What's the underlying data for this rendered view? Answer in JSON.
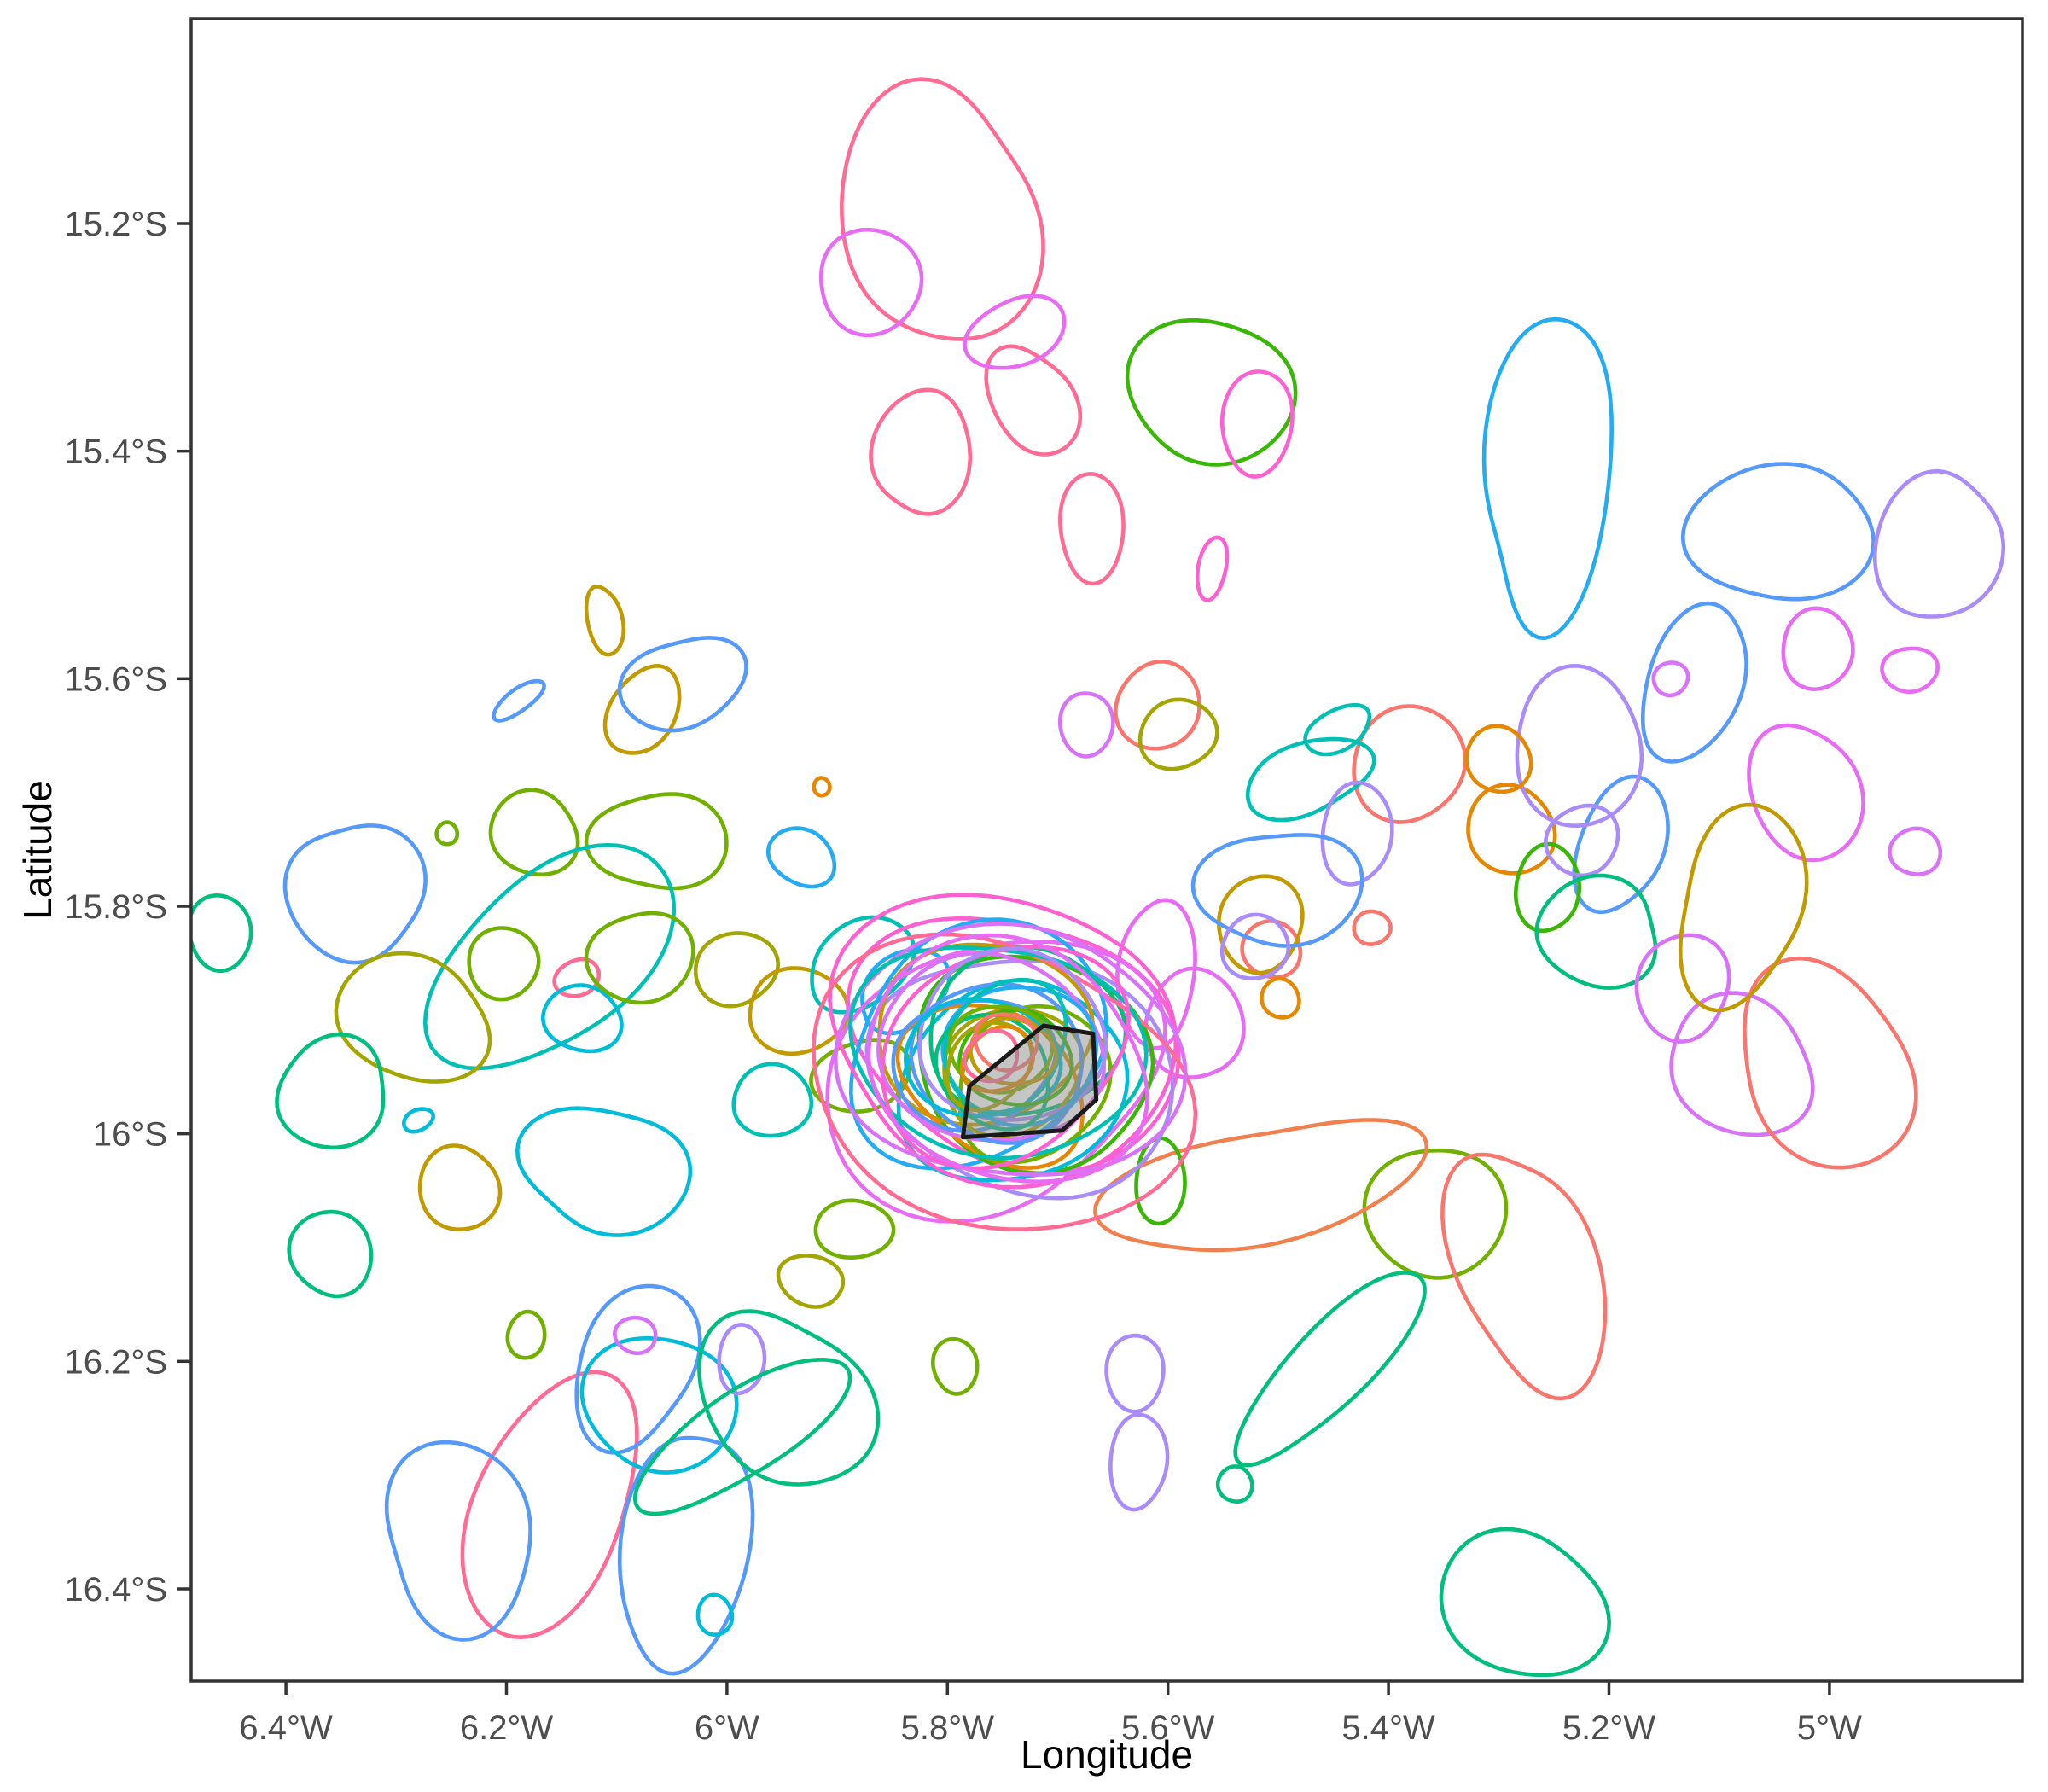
{
  "chart_data": {
    "type": "line",
    "subtype": "2d-home-range-contour-outlines-on-map",
    "title": "",
    "xlabel": "Longitude",
    "ylabel": "Latitude",
    "grid": false,
    "legend_position": "none",
    "xlim": [
      -6.486,
      -4.825
    ],
    "ylim": [
      -16.481,
      -15.02
    ],
    "x_ticks": [
      {
        "value": -6.4,
        "label": "6.4°W"
      },
      {
        "value": -6.2,
        "label": "6.2°W"
      },
      {
        "value": -6.0,
        "label": "6°W"
      },
      {
        "value": -5.8,
        "label": "5.8°W"
      },
      {
        "value": -5.6,
        "label": "5.6°W"
      },
      {
        "value": -5.4,
        "label": "5.4°W"
      },
      {
        "value": -5.2,
        "label": "5.2°W"
      },
      {
        "value": -5.0,
        "label": "5°W"
      }
    ],
    "y_ticks": [
      {
        "value": -15.2,
        "label": "15.2°S"
      },
      {
        "value": -15.4,
        "label": "15.4°S"
      },
      {
        "value": -15.6,
        "label": "15.6°S"
      },
      {
        "value": -15.8,
        "label": "15.8°S"
      },
      {
        "value": -16.0,
        "label": "16°S"
      },
      {
        "value": -16.2,
        "label": "16.2°S"
      },
      {
        "value": -16.4,
        "label": "16.4°S"
      }
    ],
    "colors": {
      "axis_text": "#4d4d4d",
      "axis_title": "#000000",
      "panel_border": "#333333",
      "polygon_fill": "#8c8c8c",
      "polygon_stroke": "#1a1a1a"
    },
    "palette": {
      "salmon": "#F8766D",
      "coral": "#F0814E",
      "orange": "#E58700",
      "gold": "#C19A00",
      "olive": "#A3A500",
      "applegreen": "#72B000",
      "green": "#39B606",
      "jade": "#00BE7D",
      "teal": "#00C0B4",
      "cyan": "#00BCD8",
      "sky": "#24ACF2",
      "blue": "#5599FA",
      "purple": "#A98CF9",
      "violet": "#D873F8",
      "orchid": "#E76BF3",
      "hotpink": "#FD61D1",
      "rose": "#FF6B94"
    },
    "study_polygon": {
      "opacity": 0.5,
      "vertices": [
        [
          -5.713,
          -15.905
        ],
        [
          -5.668,
          -15.912
        ],
        [
          -5.665,
          -15.97
        ],
        [
          -5.696,
          -15.997
        ],
        [
          -5.786,
          -16.003
        ],
        [
          -5.78,
          -15.958
        ]
      ]
    },
    "contour_format": [
      "lon_center",
      "lat_center",
      "rx_deg",
      "ry_deg",
      "rotation_deg",
      "color_key",
      "wobble"
    ],
    "contours": [
      [
        -5.808,
        -15.193,
        0.089,
        0.113,
        0,
        "rose",
        0.15
      ],
      [
        -5.823,
        -15.401,
        0.043,
        0.056,
        15,
        "rose",
        0.12
      ],
      [
        -5.723,
        -15.356,
        0.037,
        0.05,
        -25,
        "rose",
        0.12
      ],
      [
        -5.87,
        -15.251,
        0.048,
        0.044,
        0,
        "orchid",
        0.08
      ],
      [
        -5.738,
        -15.296,
        0.045,
        0.03,
        -20,
        "orchid",
        0.08
      ],
      [
        -5.561,
        -15.347,
        0.074,
        0.064,
        0,
        "green",
        0.1
      ],
      [
        -5.519,
        -15.375,
        0.031,
        0.047,
        10,
        "hotpink",
        0.08
      ],
      [
        -5.669,
        -15.467,
        0.03,
        0.046,
        0,
        "rose",
        0.08
      ],
      [
        -5.56,
        -15.503,
        0.013,
        0.027,
        10,
        "hotpink",
        0.06
      ],
      [
        -5.609,
        -15.624,
        0.038,
        0.038,
        0,
        "salmon",
        0.06
      ],
      [
        -5.674,
        -15.64,
        0.023,
        0.029,
        0,
        "violet",
        0.07
      ],
      [
        -5.254,
        -15.416,
        0.058,
        0.135,
        8,
        "sky",
        0.18
      ],
      [
        -5.045,
        -15.472,
        0.084,
        0.06,
        -10,
        "blue",
        0.12
      ],
      [
        -5.123,
        -15.604,
        0.043,
        0.071,
        25,
        "blue",
        0.1
      ],
      [
        -5.189,
        -15.746,
        0.039,
        0.06,
        15,
        "blue",
        0.1
      ],
      [
        -5.011,
        -15.574,
        0.033,
        0.034,
        0,
        "orchid",
        0.07
      ],
      [
        -4.927,
        -15.592,
        0.024,
        0.02,
        0,
        "orchid",
        0.08
      ],
      [
        -4.922,
        -15.752,
        0.022,
        0.021,
        0,
        "violet",
        0.07
      ],
      [
        -5.144,
        -15.6,
        0.016,
        0.014,
        0,
        "violet",
        0.06
      ],
      [
        -5.022,
        -15.7,
        0.048,
        0.062,
        -15,
        "orchid",
        0.09
      ],
      [
        -5.289,
        -15.733,
        0.04,
        0.038,
        0,
        "orange",
        0.07
      ],
      [
        -5.256,
        -15.784,
        0.028,
        0.039,
        0,
        "green",
        0.07
      ],
      [
        -5.228,
        -15.661,
        0.06,
        0.066,
        0,
        "purple",
        0.1
      ],
      [
        -5.224,
        -15.742,
        0.033,
        0.03,
        0,
        "purple",
        0.08
      ],
      [
        -5.21,
        -15.823,
        0.058,
        0.045,
        0,
        "jade",
        0.15
      ],
      [
        -5.133,
        -15.871,
        0.043,
        0.045,
        0,
        "violet",
        0.09
      ],
      [
        -5.08,
        -15.941,
        0.07,
        0.056,
        20,
        "violet",
        0.13
      ],
      [
        -5.003,
        -15.941,
        0.077,
        0.089,
        -35,
        "salmon",
        0.14
      ],
      [
        -5.506,
        -15.838,
        0.026,
        0.025,
        0,
        "salmon",
        0.06
      ],
      [
        -5.382,
        -15.675,
        0.051,
        0.05,
        0,
        "salmon",
        0.07
      ],
      [
        -5.3,
        -15.671,
        0.029,
        0.029,
        0,
        "orange",
        0.06
      ],
      [
        -5.415,
        -15.819,
        0.016,
        0.015,
        0,
        "salmon",
        0.06
      ],
      [
        -5.498,
        -15.881,
        0.017,
        0.017,
        0,
        "orange",
        0.06
      ],
      [
        -5.516,
        -15.815,
        0.039,
        0.041,
        0,
        "gold",
        0.08
      ],
      [
        -5.446,
        -15.645,
        0.033,
        0.017,
        -25,
        "teal",
        0.1
      ],
      [
        -5.473,
        -15.687,
        0.057,
        0.032,
        -15,
        "teal",
        0.14
      ],
      [
        -5.429,
        -15.736,
        0.031,
        0.045,
        0,
        "purple",
        0.08
      ],
      [
        -4.902,
        -15.484,
        0.054,
        0.068,
        20,
        "purple",
        0.12
      ],
      [
        -5.498,
        -15.784,
        0.07,
        0.053,
        -10,
        "blue",
        0.16
      ],
      [
        -5.08,
        -15.799,
        0.058,
        0.083,
        10,
        "gold",
        0.17
      ],
      [
        -5.591,
        -15.649,
        0.035,
        0.03,
        0,
        "olive",
        0.08
      ],
      [
        -6.111,
        -15.549,
        0.015,
        0.032,
        -10,
        "gold",
        0.1
      ],
      [
        -6.076,
        -15.628,
        0.029,
        0.042,
        25,
        "gold",
        0.08
      ],
      [
        -6.04,
        -15.604,
        0.054,
        0.041,
        -20,
        "blue",
        0.14
      ],
      [
        -6.189,
        -15.619,
        0.026,
        0.01,
        -35,
        "blue",
        0.08
      ],
      [
        -5.914,
        -15.695,
        0.007,
        0.008,
        0,
        "orange",
        0.05
      ],
      [
        -6.175,
        -15.736,
        0.04,
        0.036,
        0,
        "applegreen",
        0.1
      ],
      [
        -6.254,
        -15.736,
        0.009,
        0.01,
        0,
        "applegreen",
        0.06
      ],
      [
        -6.061,
        -15.743,
        0.058,
        0.045,
        0,
        "applegreen",
        0.15
      ],
      [
        -6.337,
        -15.787,
        0.058,
        0.064,
        -30,
        "blue",
        0.16
      ],
      [
        -6.159,
        -15.845,
        0.124,
        0.075,
        -40,
        "teal",
        0.1
      ],
      [
        -6.203,
        -15.85,
        0.033,
        0.03,
        0,
        "applegreen",
        0.07
      ],
      [
        -6.285,
        -15.899,
        0.071,
        0.053,
        10,
        "olive",
        0.12
      ],
      [
        -6.136,
        -15.863,
        0.02,
        0.016,
        -20,
        "rose",
        0.06
      ],
      [
        -6.131,
        -15.899,
        0.035,
        0.029,
        0,
        "cyan",
        0.09
      ],
      [
        -6.078,
        -15.845,
        0.046,
        0.041,
        0,
        "applegreen",
        0.1
      ],
      [
        -5.992,
        -15.855,
        0.037,
        0.032,
        0,
        "olive",
        0.08
      ],
      [
        -6.358,
        -15.964,
        0.053,
        0.045,
        -15,
        "jade",
        0.14
      ],
      [
        -6.28,
        -15.988,
        0.014,
        0.009,
        -20,
        "cyan",
        0.06
      ],
      [
        -6.243,
        -16.048,
        0.035,
        0.038,
        0,
        "gold",
        0.08
      ],
      [
        -6.11,
        -16.031,
        0.074,
        0.056,
        0,
        "cyan",
        0.17
      ],
      [
        -5.932,
        -15.757,
        0.031,
        0.024,
        20,
        "sky",
        0.08
      ],
      [
        -5.885,
        -16.084,
        0.034,
        0.026,
        -5,
        "applegreen",
        0.07
      ],
      [
        -6.46,
        -15.823,
        0.029,
        0.032,
        0,
        "jade",
        0.07
      ],
      [
        -5.936,
        -15.892,
        0.046,
        0.036,
        10,
        "gold",
        0.1
      ],
      [
        -5.878,
        -15.949,
        0.043,
        0.032,
        -15,
        "applegreen",
        0.09
      ],
      [
        -5.959,
        -15.971,
        0.037,
        0.03,
        0,
        "teal",
        0.08
      ],
      [
        -5.839,
        -15.874,
        0.046,
        0.03,
        -35,
        "sky",
        0.09
      ],
      [
        -5.878,
        -15.851,
        0.054,
        0.034,
        -35,
        "teal",
        0.09
      ],
      [
        -6.359,
        -16.105,
        0.036,
        0.038,
        0,
        "jade",
        0.08
      ],
      [
        -6.182,
        -16.177,
        0.017,
        0.02,
        0,
        "applegreen",
        0.06
      ],
      [
        -6.16,
        -16.327,
        0.071,
        0.116,
        25,
        "rose",
        0.1
      ],
      [
        -6.243,
        -16.354,
        0.07,
        0.079,
        -10,
        "blue",
        0.16
      ],
      [
        -6.083,
        -16.204,
        0.054,
        0.071,
        15,
        "blue",
        0.14
      ],
      [
        -6.061,
        -16.237,
        0.068,
        0.06,
        0,
        "cyan",
        0.09
      ],
      [
        -6.038,
        -16.366,
        0.054,
        0.113,
        10,
        "blue",
        0.13
      ],
      [
        -6.011,
        -16.423,
        0.016,
        0.017,
        0,
        "cyan",
        0.06
      ],
      [
        -6.083,
        -16.177,
        0.018,
        0.016,
        0,
        "violet",
        0.06
      ],
      [
        -5.987,
        -16.198,
        0.02,
        0.031,
        0,
        "purple",
        0.07
      ],
      [
        -5.947,
        -16.234,
        0.07,
        0.083,
        -30,
        "jade",
        0.15
      ],
      [
        -5.924,
        -16.129,
        0.031,
        0.021,
        20,
        "olive",
        0.08
      ],
      [
        -5.986,
        -16.264,
        0.108,
        0.038,
        -35,
        "jade",
        0.1
      ],
      [
        -5.793,
        -16.204,
        0.02,
        0.024,
        0,
        "applegreen",
        0.06
      ],
      [
        -5.63,
        -16.21,
        0.027,
        0.032,
        0,
        "purple",
        0.07
      ],
      [
        -5.539,
        -16.308,
        0.015,
        0.016,
        0,
        "jade",
        0.06
      ],
      [
        -5.627,
        -16.288,
        0.026,
        0.041,
        0,
        "purple",
        0.08
      ],
      [
        -5.357,
        -16.069,
        0.061,
        0.059,
        0,
        "applegreen",
        0.08
      ],
      [
        -5.274,
        -16.121,
        0.062,
        0.113,
        -15,
        "salmon",
        0.16
      ],
      [
        -5.452,
        -16.204,
        0.116,
        0.034,
        -48,
        "jade",
        0.1
      ],
      [
        -5.278,
        -16.414,
        0.074,
        0.064,
        20,
        "jade",
        0.11
      ],
      [
        -5.514,
        -16.046,
        0.139,
        0.053,
        -15,
        "coral",
        0.18
      ],
      [
        -5.607,
        -16.042,
        0.023,
        0.036,
        0,
        "green",
        0.07
      ],
      [
        -5.61,
        -15.859,
        0.035,
        0.064,
        0,
        "orchid",
        0.1
      ],
      [
        -5.576,
        -15.904,
        0.043,
        0.049,
        -20,
        "orchid",
        0.1
      ],
      [
        -5.521,
        -15.836,
        0.031,
        0.027,
        0,
        "purple",
        0.07
      ],
      [
        -5.738,
        -15.919,
        0.143,
        0.113,
        15,
        "hotpink",
        0.12
      ],
      [
        -5.761,
        -15.949,
        0.155,
        0.116,
        -12,
        "orchid",
        0.13
      ],
      [
        -5.73,
        -15.949,
        0.136,
        0.105,
        30,
        "purple",
        0.12
      ],
      [
        -5.773,
        -15.922,
        0.124,
        0.098,
        -25,
        "sky",
        0.11
      ],
      [
        -5.723,
        -15.937,
        0.116,
        0.086,
        20,
        "green",
        0.12
      ],
      [
        -5.742,
        -15.956,
        0.108,
        0.083,
        -40,
        "cyan",
        0.11
      ],
      [
        -5.769,
        -15.911,
        0.101,
        0.075,
        10,
        "gold",
        0.12
      ],
      [
        -5.73,
        -15.911,
        0.093,
        0.069,
        -20,
        "jade",
        0.11
      ],
      [
        -5.758,
        -15.956,
        0.087,
        0.064,
        25,
        "orange",
        0.12
      ],
      [
        -5.723,
        -15.956,
        0.077,
        0.06,
        -30,
        "applegreen",
        0.11
      ],
      [
        -5.777,
        -15.938,
        0.074,
        0.056,
        5,
        "blue",
        0.12
      ],
      [
        -5.742,
        -15.945,
        0.068,
        0.051,
        -15,
        "olive",
        0.11
      ],
      [
        -5.75,
        -15.915,
        0.16,
        0.122,
        0,
        "hotpink",
        0.13
      ],
      [
        -5.755,
        -15.958,
        0.17,
        0.127,
        8,
        "rose",
        0.12
      ],
      [
        -5.744,
        -15.93,
        0.15,
        0.115,
        -5,
        "violet",
        0.12
      ],
      [
        -5.756,
        -15.926,
        0.128,
        0.096,
        18,
        "teal",
        0.11
      ],
      [
        -5.75,
        -15.93,
        0.116,
        0.09,
        -20,
        "hotpink",
        0.1
      ],
      [
        -5.746,
        -15.937,
        0.132,
        0.101,
        10,
        "orchid",
        0.11
      ],
      [
        -5.761,
        -15.926,
        0.105,
        0.079,
        25,
        "violet",
        0.09
      ],
      [
        -5.742,
        -15.915,
        0.089,
        0.071,
        -10,
        "purple",
        0.1
      ],
      [
        -5.754,
        -15.937,
        0.081,
        0.066,
        40,
        "blue",
        0.09
      ],
      [
        -5.734,
        -15.93,
        0.071,
        0.059,
        -30,
        "sky",
        0.1
      ],
      [
        -5.769,
        -15.934,
        0.068,
        0.053,
        15,
        "cyan",
        0.09
      ],
      [
        -5.747,
        -15.922,
        0.062,
        0.05,
        -45,
        "teal",
        0.08
      ],
      [
        -5.758,
        -15.945,
        0.056,
        0.045,
        30,
        "jade",
        0.09
      ],
      [
        -5.738,
        -15.934,
        0.051,
        0.041,
        -15,
        "green",
        0.1
      ],
      [
        -5.752,
        -15.925,
        0.046,
        0.038,
        20,
        "applegreen",
        0.08
      ],
      [
        -5.763,
        -15.94,
        0.042,
        0.034,
        -35,
        "olive",
        0.09
      ],
      [
        -5.741,
        -15.928,
        0.037,
        0.03,
        10,
        "gold",
        0.08
      ],
      [
        -5.754,
        -15.935,
        0.033,
        0.027,
        -20,
        "orange",
        0.09
      ],
      [
        -5.747,
        -15.919,
        0.029,
        0.024,
        35,
        "salmon",
        0.08
      ],
      [
        -5.76,
        -15.932,
        0.025,
        0.021,
        -10,
        "rose",
        0.09
      ]
    ]
  }
}
